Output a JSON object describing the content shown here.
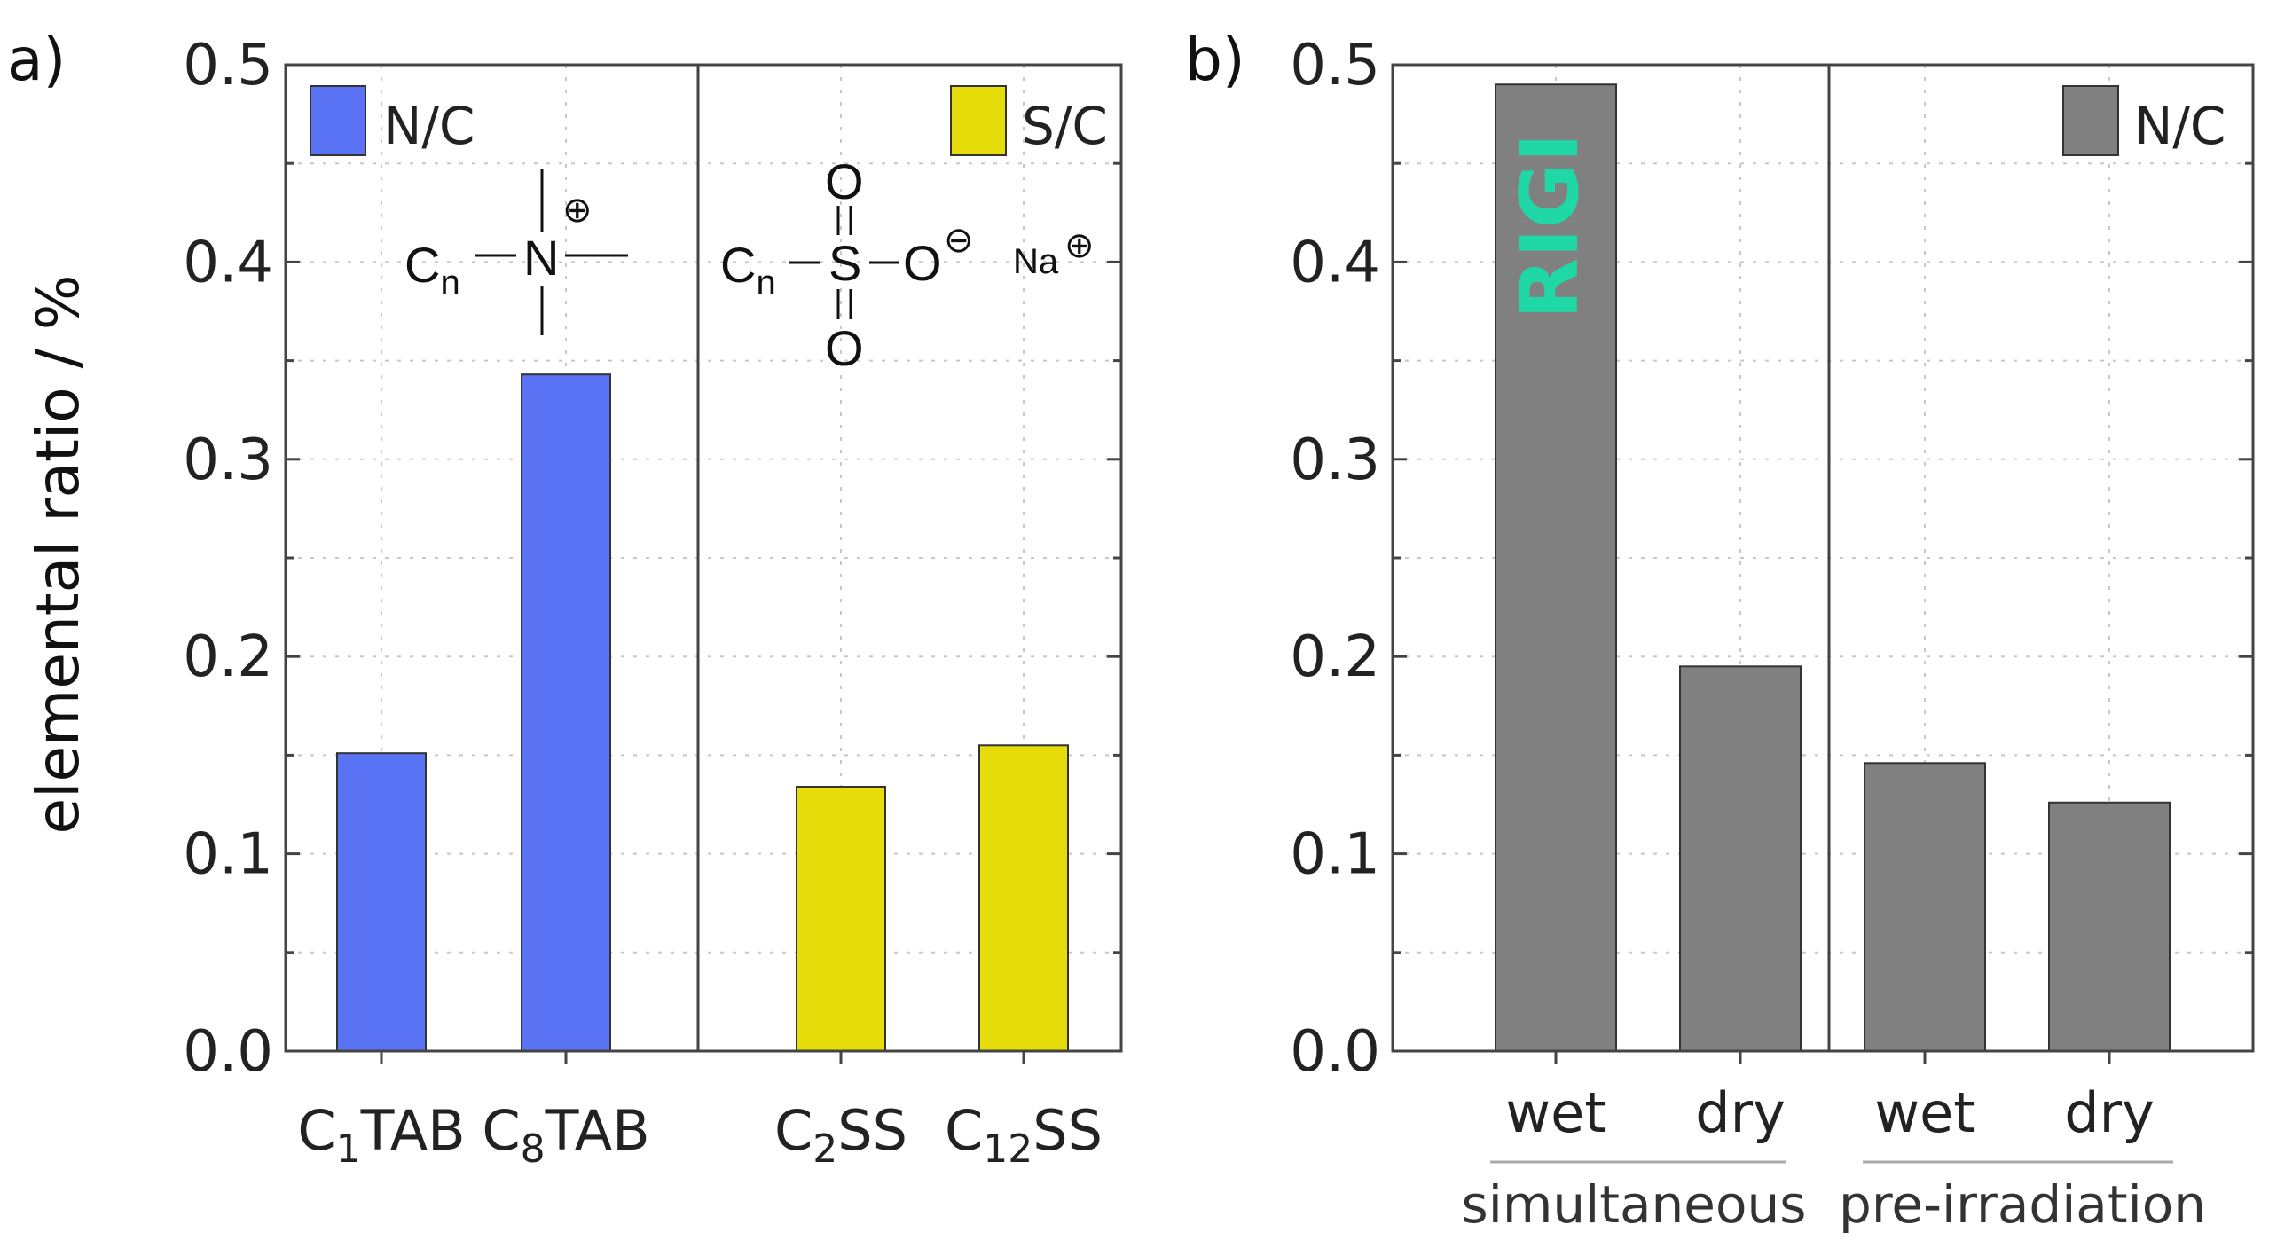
{
  "chart_data": [
    {
      "panel": "a)",
      "type": "bar",
      "ylabel": "elemental ratio / %",
      "ylim": [
        0,
        0.5
      ],
      "yticks": [
        "0.0",
        "0.1",
        "0.2",
        "0.3",
        "0.4",
        "0.5"
      ],
      "grid": true,
      "legend": [
        {
          "label": "N/C",
          "color": "#5a73f5",
          "position": "top-left"
        },
        {
          "label": "S/C",
          "color": "#e6dc0a",
          "position": "top-right"
        }
      ],
      "bars": [
        {
          "label": "C",
          "sub": "1",
          "rest": "TAB",
          "value": 0.151,
          "series": "N/C"
        },
        {
          "label": "C",
          "sub": "8",
          "rest": "TAB",
          "value": 0.343,
          "series": "N/C"
        },
        {
          "label": "C",
          "sub": "2",
          "rest": "SS",
          "value": 0.134,
          "series": "S/C"
        },
        {
          "label": "C",
          "sub": "12",
          "rest": "SS",
          "value": 0.155,
          "series": "S/C"
        }
      ],
      "structures": {
        "ammonium": {
          "cn": "C",
          "cn_sub": "n",
          "atom": "N",
          "charge": "⊕"
        },
        "sulfonate": {
          "cn": "C",
          "cn_sub": "n",
          "atom_s": "S",
          "o_top": "O",
          "o_bottom": "O",
          "o_right": "O",
          "charge_o": "⊖",
          "counterion": "Na",
          "charge_na": "⊕"
        }
      }
    },
    {
      "panel": "b)",
      "type": "bar",
      "ylim": [
        0,
        0.5
      ],
      "yticks": [
        "0.0",
        "0.1",
        "0.2",
        "0.3",
        "0.4",
        "0.5"
      ],
      "grid": true,
      "legend": [
        {
          "label": "N/C",
          "color": "#808080",
          "position": "top-right"
        }
      ],
      "bars": [
        {
          "label": "wet",
          "value": 0.49,
          "group": "simultaneous"
        },
        {
          "label": "dry",
          "value": 0.195,
          "group": "simultaneous"
        },
        {
          "label": "wet",
          "value": 0.146,
          "group": "pre-irradiation"
        },
        {
          "label": "dry",
          "value": 0.126,
          "group": "pre-irradiation"
        }
      ],
      "groups": [
        "simultaneous",
        "pre-irradiation"
      ],
      "annotation": "RIGI"
    }
  ],
  "colors": {
    "blue": "#5a73f5",
    "yellow": "#e6dc0a",
    "gray": "#808080",
    "rigi": "#1fd8a6"
  }
}
